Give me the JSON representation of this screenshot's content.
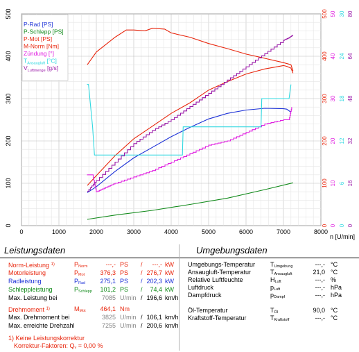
{
  "chart_data": {
    "type": "line",
    "xlabel": "n [U/min]",
    "xlim": [
      0,
      8000
    ],
    "x_ticks": [
      "0",
      "1000",
      "2000",
      "3000",
      "4000",
      "5000",
      "6000",
      "7000",
      "8000"
    ],
    "y_left": {
      "lim": [
        0,
        500
      ],
      "ticks": [
        "0",
        "100",
        "200",
        "300",
        "400",
        "500"
      ]
    },
    "right_axes": [
      {
        "name": "M-Norm",
        "color": "#e8250c",
        "ticks": [
          "0",
          "100",
          "200",
          "300",
          "400",
          "500"
        ]
      },
      {
        "name": "Zündung",
        "color": "#e020e0",
        "ticks": [
          "0",
          "10",
          "20",
          "30",
          "40",
          "50"
        ]
      },
      {
        "name": "T Ansaugluft",
        "color": "#30d8e0",
        "ticks": [
          "0",
          "6",
          "12",
          "18",
          "24",
          "30"
        ]
      },
      {
        "name": "V Luftmenge",
        "color": "#9a1aa8",
        "ticks": [
          "0",
          "16",
          "32",
          "48",
          "64",
          "80"
        ]
      }
    ],
    "grid": true,
    "legend_position": "top-left",
    "legend": [
      {
        "text": "P-Rad [PS]",
        "color": "#1a2fd6"
      },
      {
        "text": "P-Schlepp [PS]",
        "color": "#118a1a"
      },
      {
        "text": "P-Mot [PS]",
        "color": "#e8250c"
      },
      {
        "text": "M-Norm [Nm]",
        "color": "#e8250c"
      },
      {
        "text": "Zündung [°]",
        "color": "#e020e0"
      },
      {
        "text": "T",
        "sub": "Ansaugluft",
        "after": " [°C]",
        "color": "#30d8e0"
      },
      {
        "text": "V",
        "sub": "Luftmenge",
        "after": " [g/s]",
        "color": "#9a1aa8"
      }
    ],
    "series": [
      {
        "name": "P-Mot",
        "color": "#e8250c",
        "x": [
          1760,
          2000,
          2500,
          3000,
          3500,
          4000,
          4500,
          5000,
          5500,
          6000,
          6500,
          7000,
          7085,
          7200,
          7255
        ],
        "y": [
          95,
          118,
          165,
          205,
          235,
          265,
          290,
          320,
          340,
          358,
          370,
          378,
          376.3,
          372,
          360
        ]
      },
      {
        "name": "P-Rad",
        "color": "#1a2fd6",
        "x": [
          1760,
          2000,
          2500,
          3000,
          3500,
          4000,
          4500,
          5000,
          5500,
          6000,
          6500,
          7000,
          7085,
          7200
        ],
        "y": [
          78,
          92,
          128,
          160,
          185,
          210,
          232,
          252,
          265,
          273,
          277,
          276,
          275.1,
          268
        ]
      },
      {
        "name": "P-Schlepp",
        "color": "#118a1a",
        "x": [
          1760,
          2500,
          3500,
          4500,
          5500,
          6500,
          7255
        ],
        "y": [
          15,
          25,
          36,
          50,
          65,
          85,
          101.2
        ]
      },
      {
        "name": "M-Norm",
        "color": "#e8250c",
        "x": [
          1760,
          2000,
          2500,
          2800,
          3000,
          3300,
          3500,
          3825,
          4000,
          4500,
          5000,
          5500,
          6000,
          6500,
          7000,
          7200,
          7255
        ],
        "y": [
          380,
          410,
          445,
          462,
          462,
          460,
          466,
          464.1,
          455,
          445,
          430,
          418,
          405,
          395,
          385,
          380,
          365
        ]
      },
      {
        "name": "Zündung",
        "color": "#e020e0",
        "x": [
          1750,
          1900,
          2000,
          2250,
          2500,
          3000,
          3500,
          4000,
          4500,
          5000,
          5500,
          6000,
          6500,
          7000,
          7150,
          7220
        ],
        "y": [
          12,
          12,
          8,
          9,
          10,
          11.5,
          13,
          15,
          17,
          19,
          20,
          22,
          24,
          25,
          25,
          28
        ]
      },
      {
        "name": "T Ansaugluft",
        "color": "#30d8e0",
        "x": [
          1750,
          1790,
          1900,
          1950,
          4300,
          4320,
          6400,
          6420,
          7150,
          7200
        ],
        "y": [
          20,
          20,
          14,
          10,
          10,
          14,
          14,
          18,
          18,
          20
        ]
      },
      {
        "name": "V Luftmenge",
        "color": "#9a1aa8",
        "x": [
          1760,
          2000,
          2500,
          3000,
          3500,
          4000,
          4500,
          5000,
          5500,
          6000,
          6500,
          7000,
          7150,
          7250
        ],
        "y": [
          13,
          17,
          24,
          31,
          36,
          40,
          45,
          50,
          55,
          60,
          65,
          70,
          71,
          72
        ]
      }
    ]
  },
  "leistung": {
    "title": "Leistungsdaten",
    "rows": [
      {
        "label": "Norm-Leistung",
        "mark": "1)",
        "sym": "P",
        "sub": "Norm",
        "v1": "---,-",
        "u1": "PS",
        "sep": "/",
        "v2": "---,-",
        "u2": "kW",
        "color": "red"
      },
      {
        "label": "Motorleistung",
        "sym": "P",
        "sub": "Mot",
        "v1": "376,3",
        "u1": "PS",
        "sep": "/",
        "v2": "276,7",
        "u2": "kW",
        "color": "red"
      },
      {
        "label": "Radleistung",
        "sym": "P",
        "sub": "Rad",
        "v1": "275,1",
        "u1": "PS",
        "sep": "/",
        "v2": "202,3",
        "u2": "kW",
        "color": "blue"
      },
      {
        "label": "Schleppleistung",
        "sym": "P",
        "sub": "Schlepp",
        "v1": "101,2",
        "u1": "PS",
        "sep": "/",
        "v2": "74,4",
        "u2": "kW",
        "color": "green"
      },
      {
        "label": "Max. Leistung bei",
        "v1": "7085",
        "u1": "U/min",
        "sep": "/",
        "v2": "196,6",
        "u2": "km/h",
        "color": "black"
      },
      {
        "label": "Drehmoment",
        "mark": "1)",
        "sym": "M",
        "sub": "Mot",
        "v1": "464,1",
        "u1": "Nm",
        "color": "red"
      },
      {
        "label": "Max. Drehmoment bei",
        "v1": "3825",
        "u1": "U/min",
        "sep": "/",
        "v2": "106,1",
        "u2": "km/h",
        "color": "black"
      },
      {
        "label": "Max. erreichte Drehzahl",
        "v1": "7255",
        "u1": "U/min",
        "sep": "/",
        "v2": "200,6",
        "u2": "km/h",
        "color": "black"
      }
    ],
    "footnote1": "1) Keine Leistungskorrektur",
    "footnote2": "Korrektur-Faktoren: Q",
    "footnote2_sub": "v",
    "footnote2_value": " = 0,00 %"
  },
  "umgebung": {
    "title": "Umgebungsdaten",
    "rows": [
      {
        "label": "Umgebungs-Temperatur",
        "sym": "T",
        "sub": "Umgebung",
        "val": "---,-",
        "unit": "°C"
      },
      {
        "label": "Ansaugluft-Temperatur",
        "sym": "T",
        "sub": "Ansaugluft",
        "val": "21,0",
        "unit": "°C"
      },
      {
        "label": "Relative Luftfeuchte",
        "sym": "H",
        "sub": "Luft",
        "val": "---,-",
        "unit": "%"
      },
      {
        "label": "Luftdruck",
        "sym": "p",
        "sub": "Luft",
        "val": "---,-",
        "unit": "hPa"
      },
      {
        "label": "Dampfdruck",
        "sym": "p",
        "sub": "Dampf",
        "val": "---,-",
        "unit": "hPa"
      },
      {
        "label": "Öl-Temperatur",
        "sym": "T",
        "sub": "Öl",
        "val": "90,0",
        "unit": "°C"
      },
      {
        "label": "Kraftstoff-Temperatur",
        "sym": "T",
        "sub": "Kraftstoff",
        "val": "---,-",
        "unit": "°C"
      }
    ]
  }
}
